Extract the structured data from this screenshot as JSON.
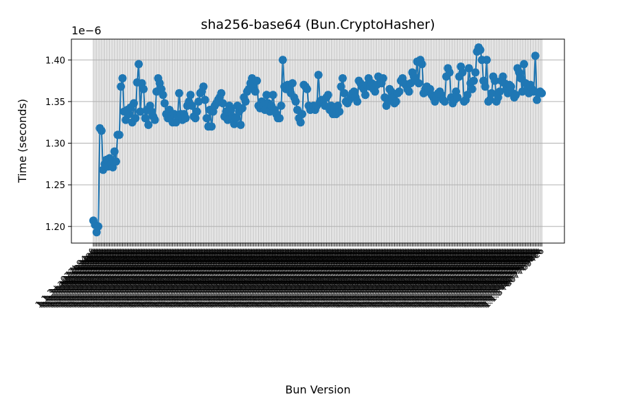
{
  "chart_data": {
    "type": "line",
    "title": "sha256-base64 (Bun.CryptoHasher)",
    "xlabel": "Bun Version",
    "ylabel": "Time (seconds)",
    "y_offset_label": "1e−6",
    "ylim": [
      1.18,
      1.425
    ],
    "yticks": [
      1.2,
      1.25,
      1.3,
      1.35,
      1.4
    ],
    "ytick_labels": [
      "1.20",
      "1.25",
      "1.30",
      "1.35",
      "1.40"
    ],
    "grid": "y",
    "marker": "circle",
    "color": "#1f77b4",
    "xtick_label_sample": "1.1.3+a077b94e6",
    "series": [
      {
        "values": [
          1.207,
          1.202,
          1.193,
          1.2,
          1.318,
          1.315,
          1.268,
          1.275,
          1.28,
          1.272,
          1.282,
          1.275,
          1.271,
          1.29,
          1.278,
          1.31,
          1.31,
          1.368,
          1.378,
          1.338,
          1.328,
          1.34,
          1.335,
          1.343,
          1.325,
          1.348,
          1.33,
          1.373,
          1.395,
          1.338,
          1.372,
          1.365,
          1.33,
          1.34,
          1.322,
          1.345,
          1.338,
          1.332,
          1.328,
          1.362,
          1.378,
          1.372,
          1.365,
          1.358,
          1.348,
          1.335,
          1.33,
          1.34,
          1.333,
          1.325,
          1.335,
          1.325,
          1.333,
          1.36,
          1.335,
          1.328,
          1.335,
          1.33,
          1.345,
          1.35,
          1.358,
          1.345,
          1.332,
          1.33,
          1.338,
          1.35,
          1.36,
          1.362,
          1.368,
          1.352,
          1.33,
          1.32,
          1.34,
          1.32,
          1.338,
          1.345,
          1.348,
          1.352,
          1.355,
          1.36,
          1.348,
          1.332,
          1.338,
          1.328,
          1.345,
          1.34,
          1.332,
          1.323,
          1.33,
          1.345,
          1.338,
          1.322,
          1.342,
          1.355,
          1.35,
          1.362,
          1.365,
          1.372,
          1.378,
          1.368,
          1.362,
          1.375,
          1.345,
          1.342,
          1.35,
          1.345,
          1.34,
          1.358,
          1.348,
          1.338,
          1.345,
          1.358,
          1.34,
          1.335,
          1.33,
          1.33,
          1.345,
          1.4,
          1.368,
          1.365,
          1.37,
          1.368,
          1.36,
          1.372,
          1.355,
          1.35,
          1.34,
          1.33,
          1.325,
          1.335,
          1.37,
          1.368,
          1.365,
          1.345,
          1.34,
          1.342,
          1.345,
          1.34,
          1.345,
          1.382,
          1.35,
          1.352,
          1.348,
          1.345,
          1.355,
          1.358,
          1.34,
          1.345,
          1.335,
          1.342,
          1.335,
          1.345,
          1.338,
          1.368,
          1.378,
          1.36,
          1.35,
          1.348,
          1.352,
          1.355,
          1.36,
          1.362,
          1.355,
          1.35,
          1.375,
          1.372,
          1.368,
          1.365,
          1.358,
          1.37,
          1.378,
          1.368,
          1.372,
          1.365,
          1.362,
          1.37,
          1.38,
          1.378,
          1.372,
          1.378,
          1.355,
          1.345,
          1.35,
          1.365,
          1.362,
          1.355,
          1.348,
          1.35,
          1.36,
          1.362,
          1.375,
          1.378,
          1.372,
          1.37,
          1.365,
          1.362,
          1.372,
          1.385,
          1.38,
          1.375,
          1.398,
          1.372,
          1.4,
          1.395,
          1.36,
          1.365,
          1.368,
          1.362,
          1.365,
          1.358,
          1.355,
          1.35,
          1.355,
          1.36,
          1.362,
          1.358,
          1.352,
          1.35,
          1.38,
          1.39,
          1.385,
          1.355,
          1.348,
          1.352,
          1.362,
          1.355,
          1.38,
          1.392,
          1.385,
          1.35,
          1.352,
          1.358,
          1.39,
          1.372,
          1.365,
          1.375,
          1.385,
          1.41,
          1.415,
          1.412,
          1.4,
          1.375,
          1.368,
          1.4,
          1.35,
          1.352,
          1.36,
          1.38,
          1.375,
          1.35,
          1.355,
          1.362,
          1.375,
          1.38,
          1.372,
          1.365,
          1.36,
          1.37,
          1.368,
          1.36,
          1.355,
          1.358,
          1.39,
          1.385,
          1.378,
          1.362,
          1.395,
          1.372,
          1.365,
          1.36,
          1.37,
          1.365,
          1.362,
          1.405,
          1.352,
          1.36,
          1.362,
          1.36
        ]
      }
    ]
  }
}
